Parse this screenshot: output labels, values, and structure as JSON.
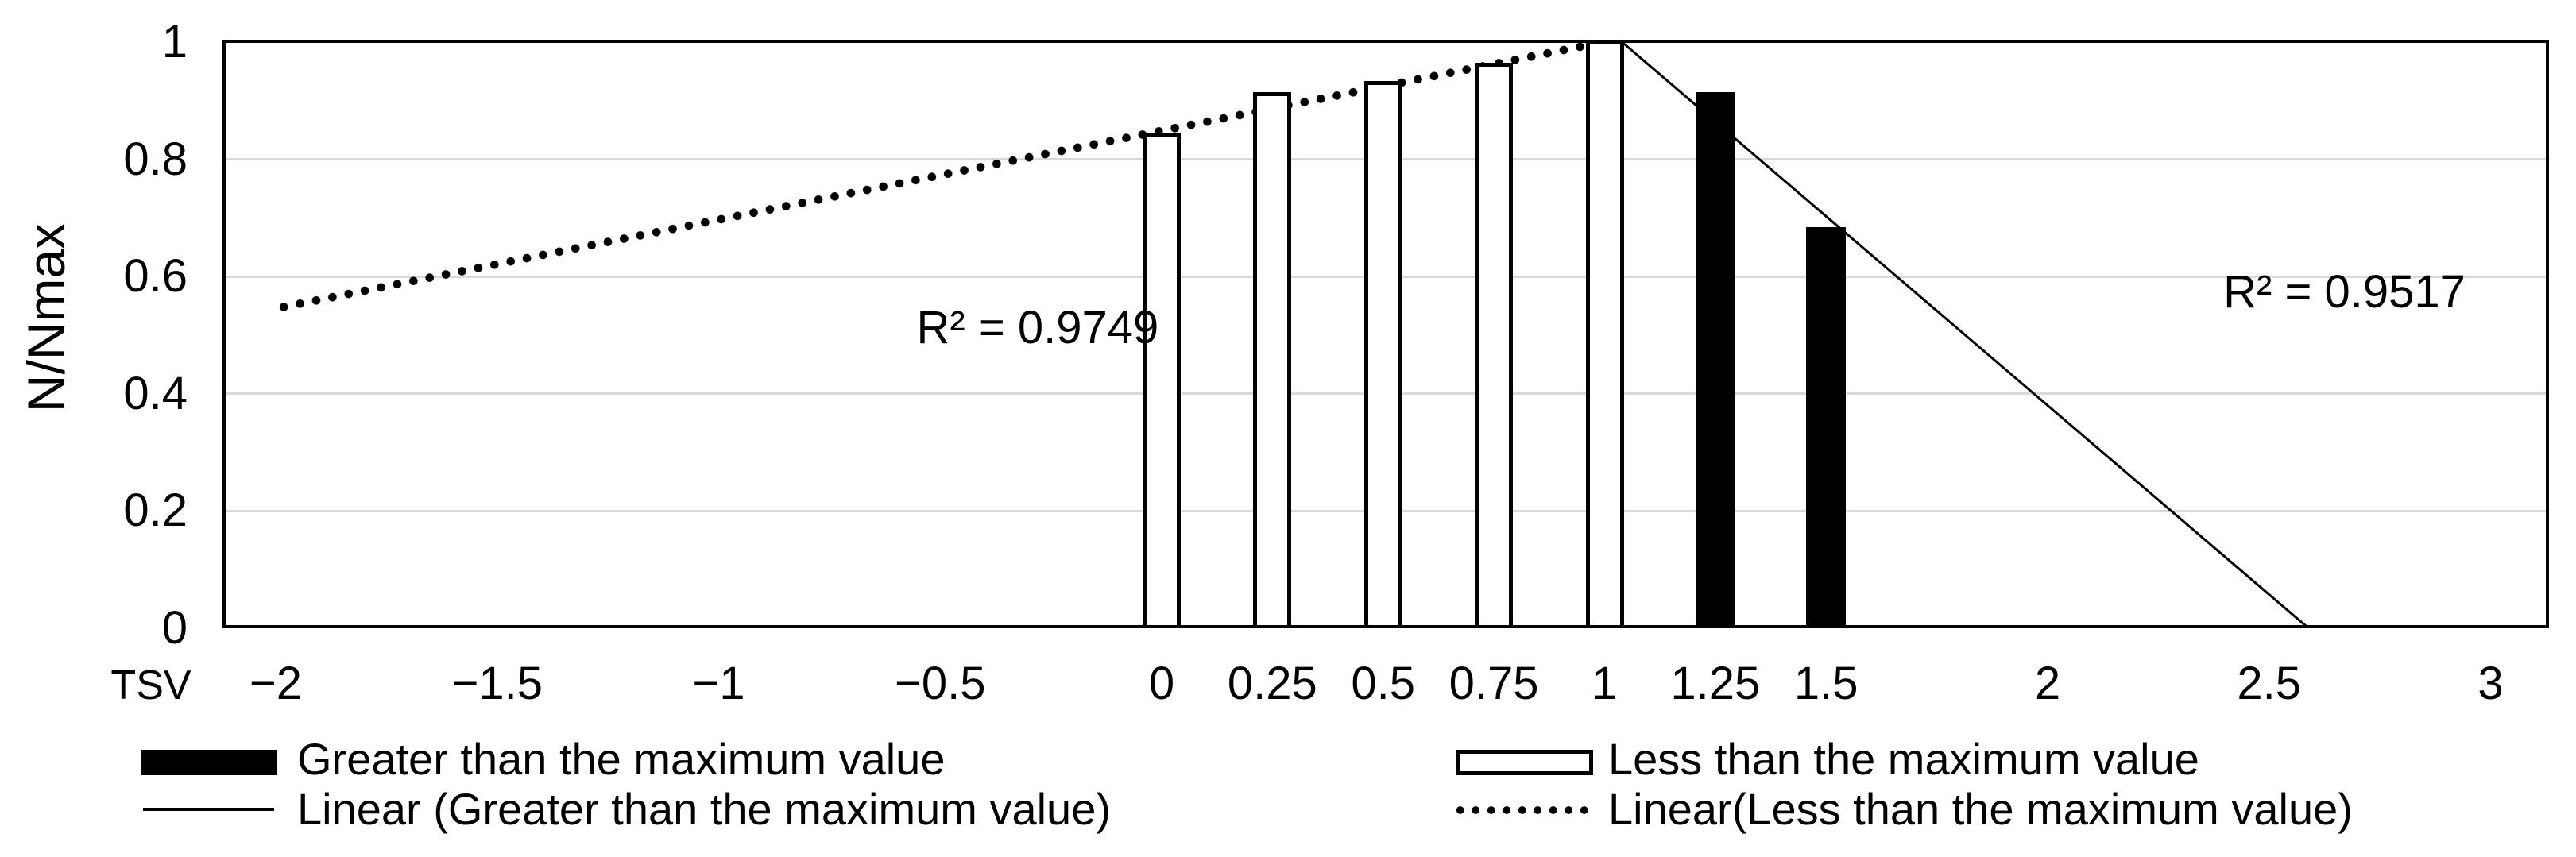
{
  "chart_data": {
    "type": "bar",
    "title": "",
    "xlabel": "TSV",
    "ylabel": "N/Nmax",
    "xlim": [
      -2.12,
      3.14
    ],
    "ylim": [
      0,
      1
    ],
    "grid": "horizontal-only",
    "x_ticks": [
      {
        "value": -2,
        "label": "−2"
      },
      {
        "value": -1.5,
        "label": "−1.5"
      },
      {
        "value": -1,
        "label": "−1"
      },
      {
        "value": -0.5,
        "label": "−0.5"
      },
      {
        "value": 0,
        "label": "0"
      },
      {
        "value": 0.25,
        "label": "0.25"
      },
      {
        "value": 0.5,
        "label": "0.5"
      },
      {
        "value": 0.75,
        "label": "0.75"
      },
      {
        "value": 1,
        "label": "1"
      },
      {
        "value": 1.25,
        "label": "1.25"
      },
      {
        "value": 1.5,
        "label": "1.5"
      },
      {
        "value": 2,
        "label": "2"
      },
      {
        "value": 2.5,
        "label": "2.5"
      },
      {
        "value": 3,
        "label": "3"
      }
    ],
    "y_ticks": [
      {
        "value": 0,
        "label": "0"
      },
      {
        "value": 0.2,
        "label": "0.2"
      },
      {
        "value": 0.4,
        "label": "0.4"
      },
      {
        "value": 0.6,
        "label": "0.6"
      },
      {
        "value": 0.8,
        "label": "0.8"
      },
      {
        "value": 1,
        "label": "1"
      }
    ],
    "series": [
      {
        "key": "less-than",
        "name": "Less than the maximum value",
        "type": "bar",
        "style": "white",
        "points": [
          {
            "x": 0,
            "y": 0.84
          },
          {
            "x": 0.25,
            "y": 0.91
          },
          {
            "x": 0.5,
            "y": 0.93
          },
          {
            "x": 0.75,
            "y": 0.96
          },
          {
            "x": 1,
            "y": 1.0
          }
        ]
      },
      {
        "key": "greater-than",
        "name": "Greater than the maximum value",
        "type": "bar",
        "style": "black",
        "points": [
          {
            "x": 1.25,
            "y": 0.91
          },
          {
            "x": 1.5,
            "y": 0.68
          }
        ]
      },
      {
        "key": "linear-less-than",
        "name": "Linear(Less than the maximum value)",
        "type": "trendline",
        "style": "dotted",
        "x1": -2.0,
        "y1": 0.545,
        "x2": 1.0,
        "y2": 1.0,
        "r_squared": 0.9749
      },
      {
        "key": "linear-greater-than",
        "name": "Linear (Greater than the maximum value)",
        "type": "trendline",
        "style": "thin-solid",
        "x1": 1.04,
        "y1": 1.0,
        "x2": 2.59,
        "y2": 0.0,
        "r_squared": 0.9517
      }
    ],
    "annotations": [
      {
        "key": "r2-less-than",
        "text": "R² = 0.9749",
        "x": -0.28,
        "y": 0.512
      },
      {
        "key": "r2-greater-than",
        "text": "R² = 0.9517",
        "x": 2.67,
        "y": 0.573
      }
    ],
    "legend": {
      "position": "bottom",
      "entries": [
        {
          "key": "greater-than",
          "label": "Greater than the maximum value",
          "swatch": "black-rect"
        },
        {
          "key": "less-than",
          "label": "Less than the maximum value",
          "swatch": "white-rect"
        },
        {
          "key": "linear-greater-than",
          "label": "Linear (Greater than the maximum value)",
          "swatch": "thin-line"
        },
        {
          "key": "linear-less-than",
          "label": "Linear(Less than the maximum value)",
          "swatch": "dotted-line"
        }
      ]
    },
    "colors": {
      "background": "#ffffff",
      "text": "#000000",
      "axis": "#000000",
      "gridline": "#d9d9d9",
      "bar_greater_fill": "#000000",
      "bar_less_fill": "#ffffff",
      "bar_less_outline": "#000000",
      "trendline": "#000000"
    }
  }
}
